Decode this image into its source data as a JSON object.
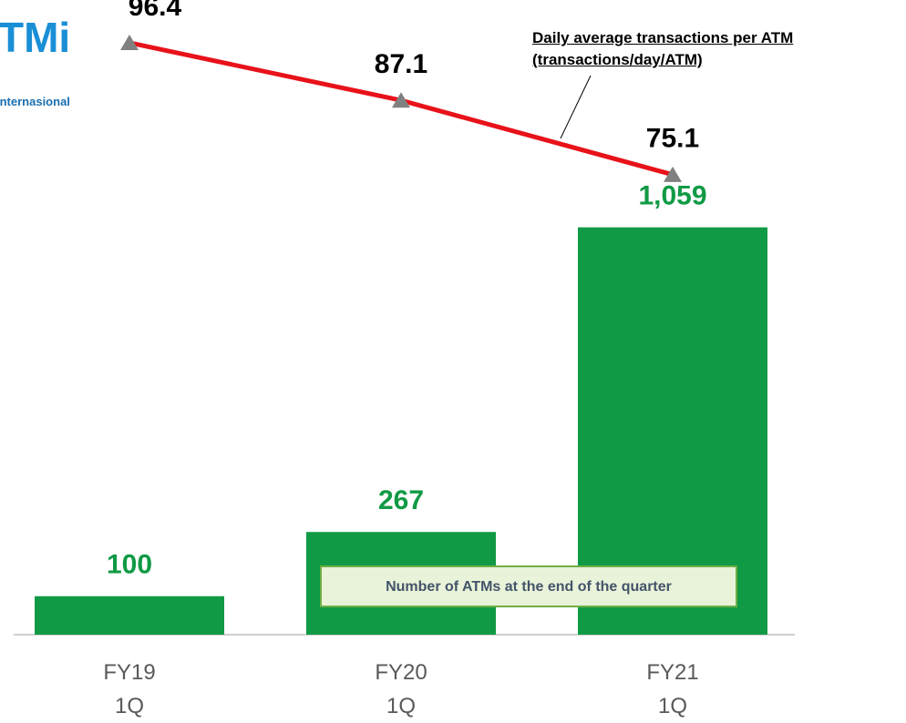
{
  "logo": {
    "text": "TMi",
    "subtitle": "Internasional"
  },
  "chart_data": {
    "type": "bar-line",
    "categories": [
      "FY19\n1Q",
      "FY20\n1Q",
      "FY21\n1Q"
    ],
    "ylim": [
      0,
      1650
    ],
    "y2lim": [
      60,
      100
    ],
    "series": [
      {
        "name": "Number of ATMs at the end of the quarter",
        "type": "bar",
        "color": "#109a45",
        "values": [
          100,
          267,
          1059
        ],
        "value_labels": [
          "100",
          "267",
          "1,059"
        ]
      },
      {
        "name": "Daily average transactions per ATM\n(transactions/day/ATM)",
        "type": "line",
        "axis": "y2",
        "color": "#e8121a",
        "marker_color": "#808080",
        "values": [
          96.4,
          87.1,
          75.1
        ]
      }
    ]
  }
}
